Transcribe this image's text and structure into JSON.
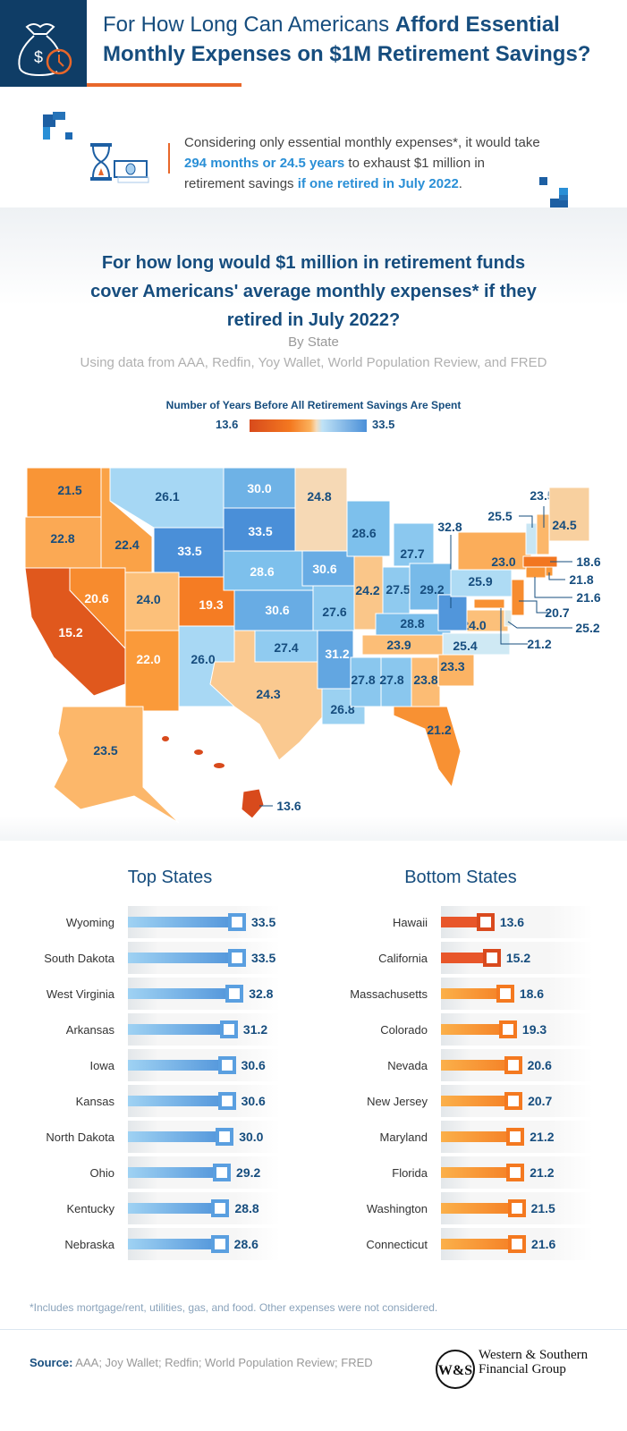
{
  "header": {
    "title_line1_plain": "For How Long Can Americans ",
    "title_line1_bold": "Afford Essential",
    "title_line2": "Monthly Expenses on $1M Retirement Savings?"
  },
  "callout": {
    "t1": "Considering only essential monthly expenses*, it would take ",
    "h1": "294 months or 24.5 years",
    "t2": " to exhaust $1 million in retirement savings ",
    "h2": "if one retired in July 2022",
    "t3": "."
  },
  "map_section": {
    "title1": "For how long would $1 million in retirement funds",
    "title2": "cover Americans' average monthly expenses* if they",
    "title3": "retired in July 2022?",
    "subtitle": "By State",
    "sources_line": "Using data from AAA, Redfin, Yoy Wallet, World Population Review, and FRED"
  },
  "legend": {
    "title": "Number of Years Before All Retirement Savings Are Spent",
    "min_label": "13.6",
    "max_label": "33.5",
    "colors": [
      "#d84a1c",
      "#f47920",
      "#f5dcbc",
      "#bfe2f6",
      "#4a8fd8"
    ]
  },
  "chart_data": [
    {
      "type": "choropleth",
      "title": "Number of Years Before All Retirement Savings Are Spent",
      "range": [
        13.6,
        33.5
      ],
      "states": [
        {
          "abbr": "WA",
          "name": "Washington",
          "value": 21.5
        },
        {
          "abbr": "OR",
          "name": "Oregon",
          "value": 22.8
        },
        {
          "abbr": "CA",
          "name": "California",
          "value": 15.2
        },
        {
          "abbr": "ID",
          "name": "Idaho",
          "value": 22.4
        },
        {
          "abbr": "NV",
          "name": "Nevada",
          "value": 20.6
        },
        {
          "abbr": "MT",
          "name": "Montana",
          "value": 26.1
        },
        {
          "abbr": "WY",
          "name": "Wyoming",
          "value": 33.5
        },
        {
          "abbr": "UT",
          "name": "Utah",
          "value": 24.0
        },
        {
          "abbr": "AZ",
          "name": "Arizona",
          "value": 22.0
        },
        {
          "abbr": "CO",
          "name": "Colorado",
          "value": 19.3
        },
        {
          "abbr": "NM",
          "name": "New Mexico",
          "value": 26.0
        },
        {
          "abbr": "ND",
          "name": "North Dakota",
          "value": 30.0
        },
        {
          "abbr": "SD",
          "name": "South Dakota",
          "value": 33.5
        },
        {
          "abbr": "NE",
          "name": "Nebraska",
          "value": 28.6
        },
        {
          "abbr": "KS",
          "name": "Kansas",
          "value": 30.6
        },
        {
          "abbr": "OK",
          "name": "Oklahoma",
          "value": 27.4
        },
        {
          "abbr": "TX",
          "name": "Texas",
          "value": 24.3
        },
        {
          "abbr": "MN",
          "name": "Minnesota",
          "value": 24.8
        },
        {
          "abbr": "IA",
          "name": "Iowa",
          "value": 30.6
        },
        {
          "abbr": "MO",
          "name": "Missouri",
          "value": 27.6
        },
        {
          "abbr": "AR",
          "name": "Arkansas",
          "value": 31.2
        },
        {
          "abbr": "LA",
          "name": "Louisiana",
          "value": 26.8
        },
        {
          "abbr": "WI",
          "name": "Wisconsin",
          "value": 28.6
        },
        {
          "abbr": "IL",
          "name": "Illinois",
          "value": 24.2
        },
        {
          "abbr": "MI",
          "name": "Michigan",
          "value": 27.7
        },
        {
          "abbr": "IN",
          "name": "Indiana",
          "value": 27.5
        },
        {
          "abbr": "OH",
          "name": "Ohio",
          "value": 29.2
        },
        {
          "abbr": "KY",
          "name": "Kentucky",
          "value": 28.8
        },
        {
          "abbr": "TN",
          "name": "Tennessee",
          "value": 23.9
        },
        {
          "abbr": "MS",
          "name": "Mississippi",
          "value": 27.8
        },
        {
          "abbr": "AL",
          "name": "Alabama",
          "value": 27.8
        },
        {
          "abbr": "GA",
          "name": "Georgia",
          "value": 23.8
        },
        {
          "abbr": "FL",
          "name": "Florida",
          "value": 21.2
        },
        {
          "abbr": "SC",
          "name": "South Carolina",
          "value": 23.3
        },
        {
          "abbr": "NC",
          "name": "North Carolina",
          "value": 25.4
        },
        {
          "abbr": "VA",
          "name": "Virginia",
          "value": 24.0
        },
        {
          "abbr": "WV",
          "name": "West Virginia",
          "value": 32.8
        },
        {
          "abbr": "PA",
          "name": "Pennsylvania",
          "value": 25.9
        },
        {
          "abbr": "NY",
          "name": "New York",
          "value": 23.0
        },
        {
          "abbr": "VT",
          "name": "Vermont",
          "value": 25.5
        },
        {
          "abbr": "NH",
          "name": "New Hampshire",
          "value": 23.5
        },
        {
          "abbr": "ME",
          "name": "Maine",
          "value": 24.5
        },
        {
          "abbr": "MA",
          "name": "Massachusetts",
          "value": 18.6
        },
        {
          "abbr": "RI",
          "name": "Rhode Island",
          "value": 21.8
        },
        {
          "abbr": "CT",
          "name": "Connecticut",
          "value": 21.6
        },
        {
          "abbr": "NJ",
          "name": "New Jersey",
          "value": 20.7
        },
        {
          "abbr": "DE",
          "name": "Delaware",
          "value": 25.2
        },
        {
          "abbr": "MD",
          "name": "Maryland",
          "value": 21.2
        },
        {
          "abbr": "AK",
          "name": "Alaska",
          "value": 23.5
        },
        {
          "abbr": "HI",
          "name": "Hawaii",
          "value": 13.6
        }
      ]
    },
    {
      "type": "bar",
      "title": "Top States",
      "categories": [
        "Wyoming",
        "South Dakota",
        "West Virginia",
        "Arkansas",
        "Iowa",
        "Kansas",
        "North Dakota",
        "Ohio",
        "Kentucky",
        "Nebraska"
      ],
      "values": [
        33.5,
        33.5,
        32.8,
        31.2,
        30.6,
        30.6,
        30.0,
        29.2,
        28.8,
        28.6
      ],
      "color": "#4a8fd8"
    },
    {
      "type": "bar",
      "title": "Bottom States",
      "categories": [
        "Hawaii",
        "California",
        "Massachusetts",
        "Colorado",
        "Nevada",
        "New Jersey",
        "Maryland",
        "Florida",
        "Washington",
        "Connecticut"
      ],
      "values": [
        13.6,
        15.2,
        18.6,
        19.3,
        20.6,
        20.7,
        21.2,
        21.2,
        21.5,
        21.6
      ],
      "color": "#f47920"
    }
  ],
  "footnote": "*Includes mortgage/rent, utilities, gas, and food. Other expenses were not considered.",
  "source": {
    "label": "Source:",
    "text": " AAA; Joy Wallet; Redfin; World Population Review; FRED"
  },
  "logo": {
    "mark": "W&S",
    "line1": "Western & Southern",
    "line2": "Financial Group"
  }
}
